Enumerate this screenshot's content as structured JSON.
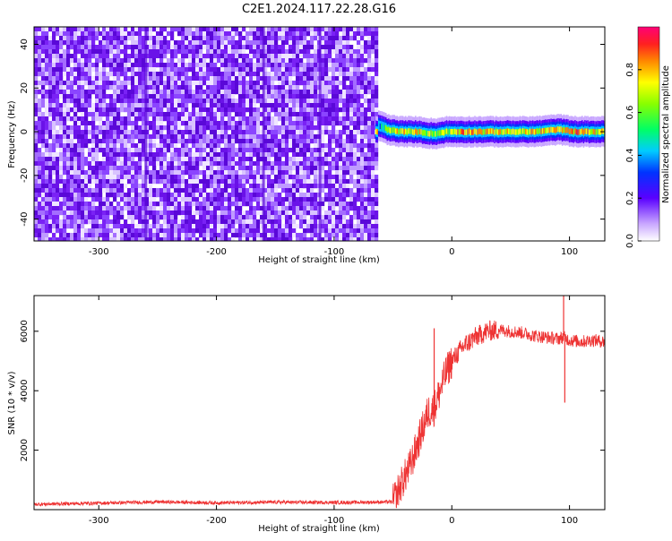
{
  "title": "C2E1.2024.117.22.28.G16",
  "colors": {
    "snr_line": "#ee3333",
    "spectrogram_noise": "#7a2cf0",
    "axis": "#000000"
  },
  "chart_data": [
    {
      "type": "heatmap",
      "xlabel": "Height of straight line (km)",
      "ylabel": "Frequency (Hz)",
      "xlim": [
        -355,
        130
      ],
      "ylim": [
        -50,
        48
      ],
      "xticks": [
        -300,
        -200,
        -100,
        0,
        100
      ],
      "yticks": [
        -40,
        -20,
        0,
        20,
        40
      ],
      "colorbar": {
        "label": "Normalized spectral amplitude",
        "range": [
          0,
          1
        ],
        "ticks": [
          0.0,
          0.2,
          0.4,
          0.6,
          0.8
        ],
        "tick_labels": [
          "0.0",
          "0.2",
          "0.4",
          "0.6",
          "0.8"
        ],
        "colormap": "rainbow (white-violet-blue-cyan-green-yellow-orange-red-magenta)"
      },
      "noise_region_x": [
        -355,
        -65
      ],
      "signal_region_x": [
        -65,
        130
      ],
      "carrier_frequency_hz": 0,
      "signal_ridge": [
        {
          "x": -63,
          "y": 3,
          "amp": 0.45
        },
        {
          "x": -55,
          "y": 1,
          "amp": 0.75
        },
        {
          "x": -45,
          "y": 0,
          "amp": 0.8
        },
        {
          "x": -30,
          "y": 0,
          "amp": 0.78
        },
        {
          "x": -15,
          "y": -1,
          "amp": 0.7
        },
        {
          "x": -5,
          "y": 0,
          "amp": 0.72
        },
        {
          "x": 10,
          "y": 0,
          "amp": 0.85
        },
        {
          "x": 40,
          "y": 0,
          "amp": 0.8
        },
        {
          "x": 70,
          "y": 0,
          "amp": 0.82
        },
        {
          "x": 90,
          "y": 1,
          "amp": 0.8
        },
        {
          "x": 105,
          "y": 0,
          "amp": 0.85
        },
        {
          "x": 130,
          "y": 0,
          "amp": 0.8
        }
      ]
    },
    {
      "type": "line",
      "xlabel": "Height of straight line (km)",
      "ylabel": "SNR (10 * v/v)",
      "xlim": [
        -355,
        130
      ],
      "ylim": [
        0,
        7200
      ],
      "xticks": [
        -300,
        -200,
        -100,
        0,
        100
      ],
      "yticks": [
        2000,
        4000,
        6000
      ],
      "series": [
        {
          "x": [
            -355,
            -300,
            -250,
            -200,
            -150,
            -100,
            -70,
            -50,
            -45,
            -40,
            -35,
            -30,
            -25,
            -20,
            -15,
            -10,
            -5,
            0,
            10,
            20,
            30,
            40,
            50,
            60,
            70,
            80,
            90,
            95,
            100,
            110,
            120,
            130
          ],
          "y": [
            180,
            220,
            260,
            230,
            250,
            240,
            250,
            260,
            700,
            1100,
            1500,
            2100,
            2700,
            3300,
            3400,
            4000,
            4600,
            5000,
            5500,
            5800,
            6000,
            6050,
            6000,
            5950,
            5850,
            5800,
            5750,
            5800,
            5700,
            5650,
            5700,
            5650
          ]
        }
      ],
      "spikes": [
        {
          "x": -15,
          "y": 6100
        },
        {
          "x": 95,
          "y": 7200
        },
        {
          "x": 96,
          "y": 3600
        }
      ]
    }
  ]
}
